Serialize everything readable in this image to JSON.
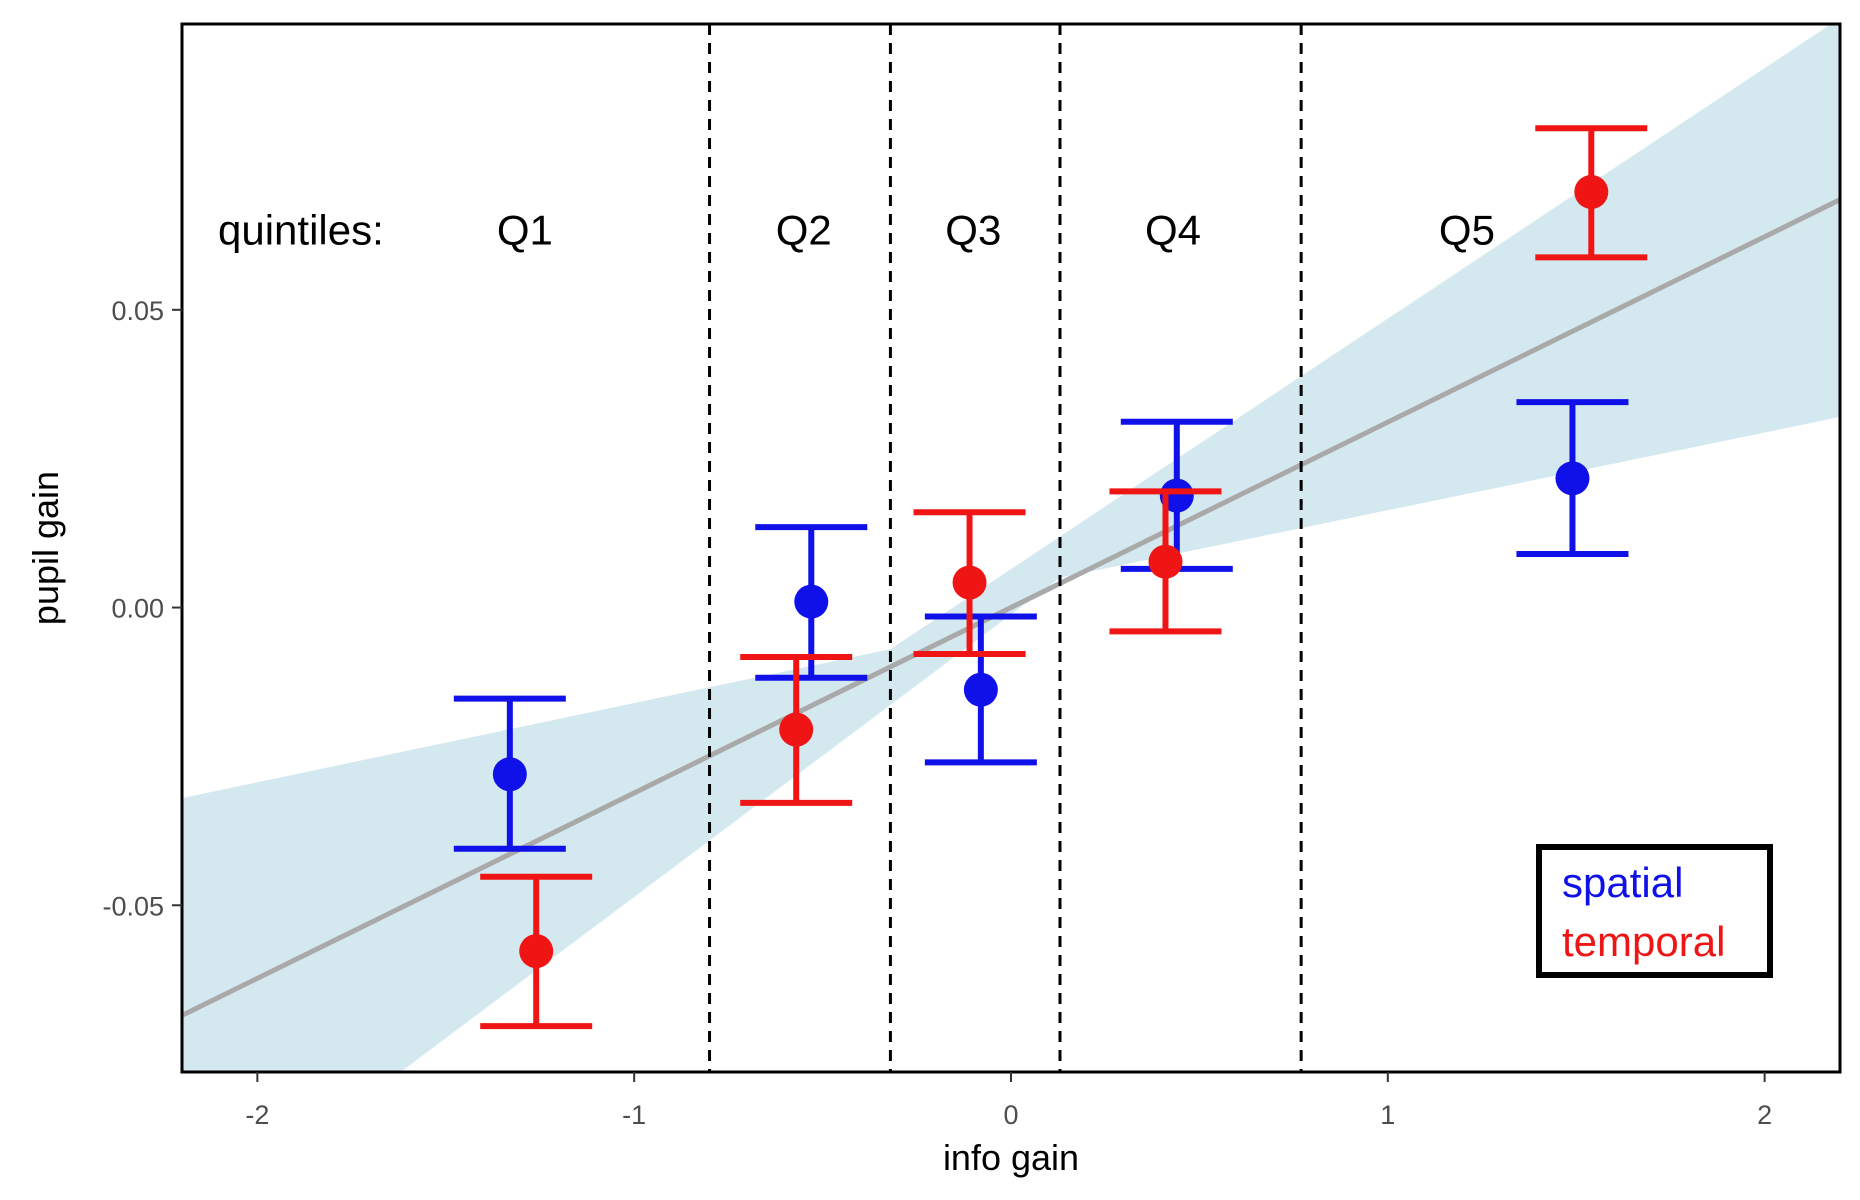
{
  "chart_data": {
    "type": "scatter",
    "xlabel": "info gain",
    "ylabel": "pupil gain",
    "xlim": [
      -2.2,
      2.2
    ],
    "ylim": [
      -0.078,
      0.098
    ],
    "x_ticks": [
      {
        "value": -2,
        "label": "-2"
      },
      {
        "value": -1,
        "label": "-1"
      },
      {
        "value": 0,
        "label": "0"
      },
      {
        "value": 1,
        "label": "1"
      },
      {
        "value": 2,
        "label": "2"
      }
    ],
    "y_ticks": [
      {
        "value": -0.05,
        "label": "-0.05"
      },
      {
        "value": 0.0,
        "label": "0.00"
      },
      {
        "value": 0.05,
        "label": "0.05"
      }
    ],
    "grid": false,
    "quintile_prefix": "quintiles:",
    "quintile_boundaries": [
      -0.8,
      -0.32,
      0.13,
      0.77
    ],
    "quintiles": [
      {
        "label": "Q1",
        "x": -1.29
      },
      {
        "label": "Q2",
        "x": -0.55
      },
      {
        "label": "Q3",
        "x": -0.1
      },
      {
        "label": "Q4",
        "x": 0.43
      },
      {
        "label": "Q5",
        "x": 1.21
      }
    ],
    "quintile_label_y": 0.061,
    "regression": {
      "start": [
        -2.2,
        -0.0685
      ],
      "end": [
        2.2,
        0.0685
      ],
      "band_upper": [
        [
          -2.2,
          -0.032
        ],
        [
          -0.32,
          -0.007
        ],
        [
          2.2,
          0.099
        ]
      ],
      "band_lower": [
        [
          -2.2,
          -0.078
        ],
        [
          -1.62,
          -0.078
        ],
        [
          0.13,
          0.005
        ],
        [
          2.2,
          0.032
        ]
      ],
      "line_color": "#a9a9a9",
      "band_color": "#d4e9ef"
    },
    "legend_position": "bottom-right",
    "series": [
      {
        "name": "spatial",
        "color": "#1010e8",
        "points": [
          {
            "x": -1.33,
            "y": -0.028,
            "ymin": -0.0405,
            "ymax": -0.0153
          },
          {
            "x": -0.53,
            "y": 0.001,
            "ymin": -0.0118,
            "ymax": 0.0135
          },
          {
            "x": -0.08,
            "y": -0.0138,
            "ymin": -0.026,
            "ymax": -0.0015
          },
          {
            "x": 0.44,
            "y": 0.0188,
            "ymin": 0.0065,
            "ymax": 0.0312
          },
          {
            "x": 1.49,
            "y": 0.0217,
            "ymin": 0.009,
            "ymax": 0.0345
          }
        ]
      },
      {
        "name": "temporal",
        "color": "#f01515",
        "points": [
          {
            "x": -1.26,
            "y": -0.0577,
            "ymin": -0.0703,
            "ymax": -0.0452
          },
          {
            "x": -0.57,
            "y": -0.0205,
            "ymin": -0.0328,
            "ymax": -0.0083
          },
          {
            "x": -0.11,
            "y": 0.0042,
            "ymin": -0.0078,
            "ymax": 0.016
          },
          {
            "x": 0.41,
            "y": 0.0077,
            "ymin": -0.004,
            "ymax": 0.0195
          },
          {
            "x": 1.54,
            "y": 0.0698,
            "ymin": 0.0588,
            "ymax": 0.0805
          }
        ]
      }
    ]
  }
}
